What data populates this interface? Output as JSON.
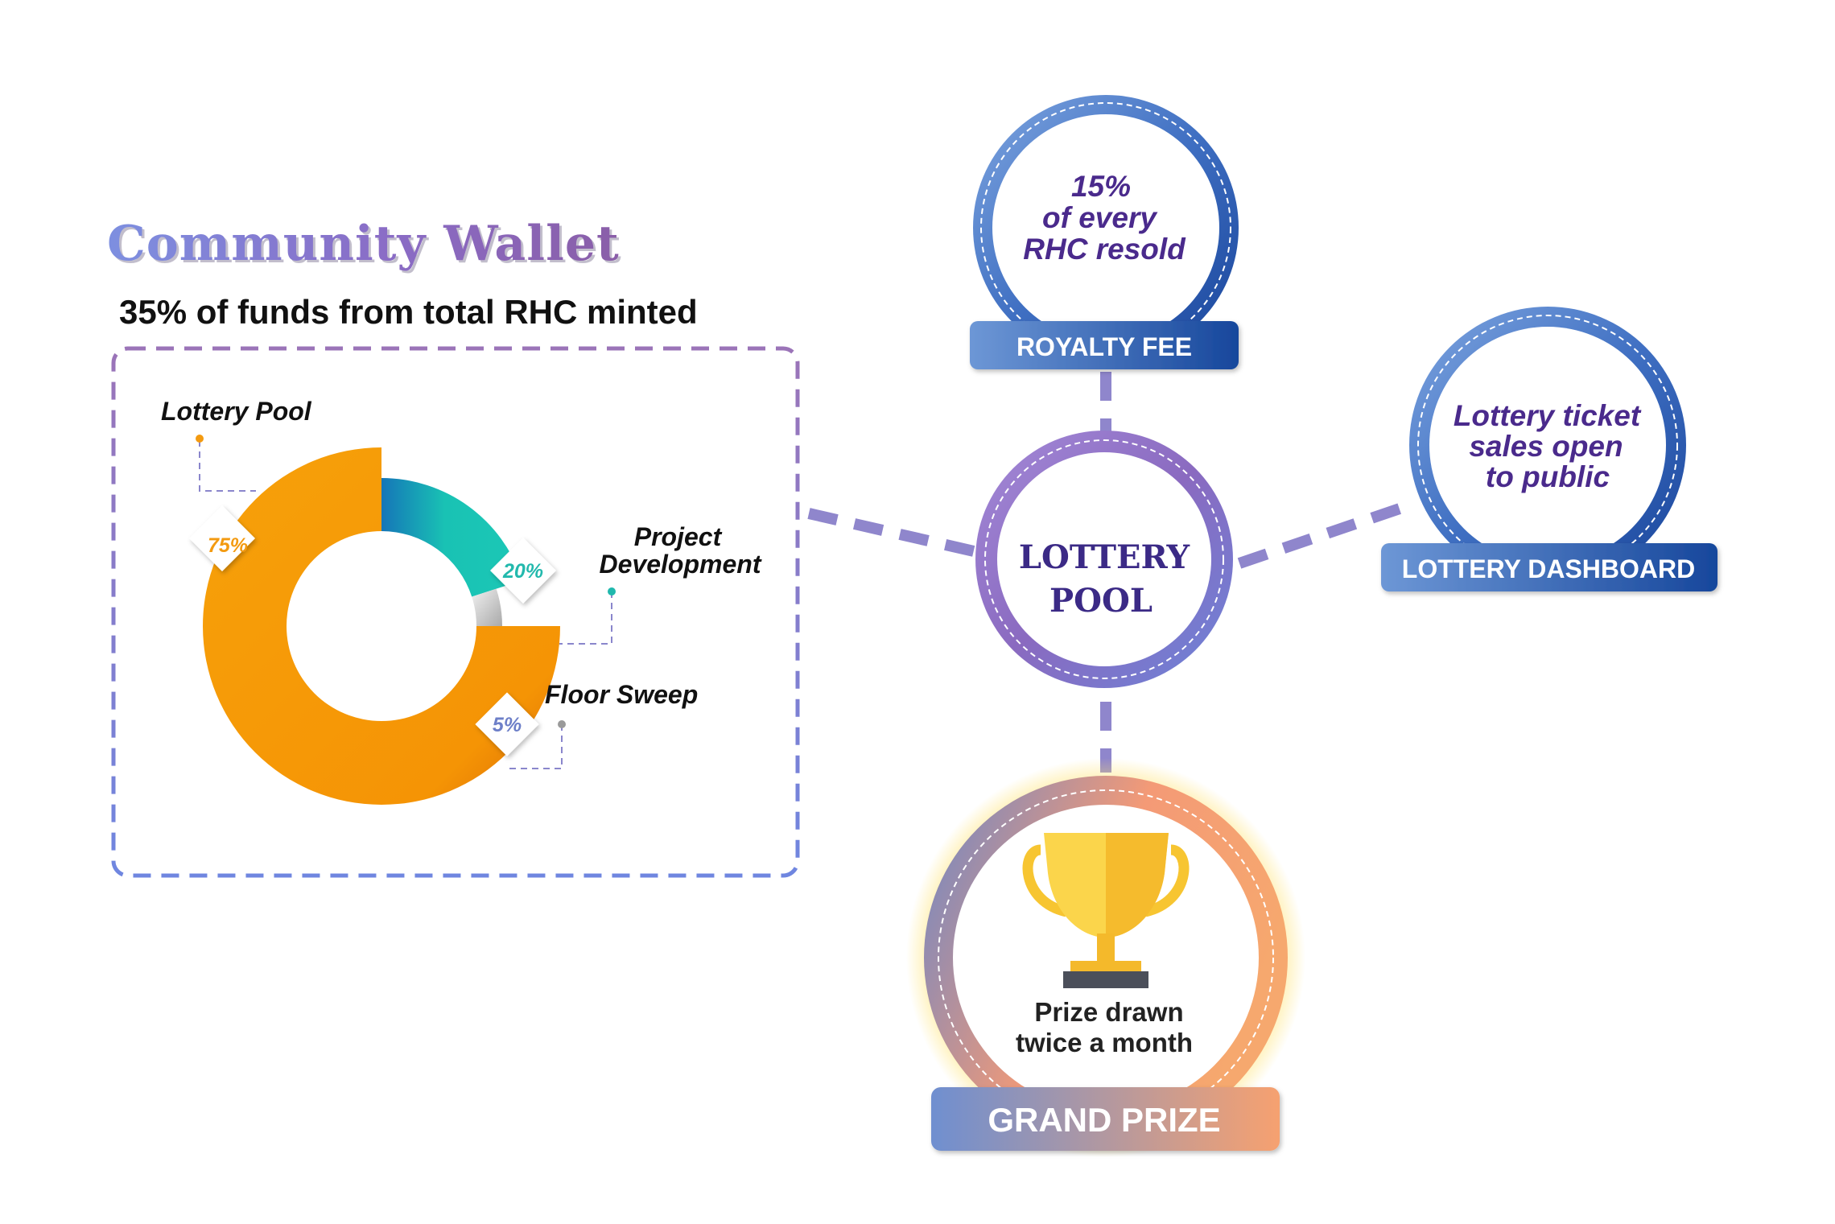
{
  "community_wallet": {
    "title": "Community Wallet",
    "subtitle": "35% of funds from total RHC minted"
  },
  "chart_data": {
    "type": "pie",
    "categories": [
      "Lottery Pool",
      "Project Development",
      "Floor Sweep"
    ],
    "values": [
      75,
      20,
      5
    ],
    "value_labels": [
      "75%",
      "20%",
      "5%"
    ],
    "colors": [
      "#f59a07",
      "#19c2b4",
      "#cfcfcf"
    ]
  },
  "nodes": {
    "royalty_fee": {
      "lines": [
        "15%",
        "of every",
        "RHC resold"
      ],
      "label": "ROYALTY FEE"
    },
    "lottery_pool": {
      "lines": [
        "LOTTERY",
        "POOL"
      ]
    },
    "lottery_dashboard": {
      "lines": [
        "Lottery ticket",
        "sales open",
        "to public"
      ],
      "label": "LOTTERY DASHBOARD"
    },
    "grand_prize": {
      "lines": [
        "Prize drawn",
        "twice a month"
      ],
      "label": "GRAND PRIZE",
      "icon": "trophy-icon"
    }
  },
  "colors": {
    "blue_ring": "#3f63b5",
    "purple_ring": "#8e6cc0",
    "node_text": "#4a2a8c",
    "connector": "#8a84cc",
    "prize_glow": "#ffd84a"
  }
}
